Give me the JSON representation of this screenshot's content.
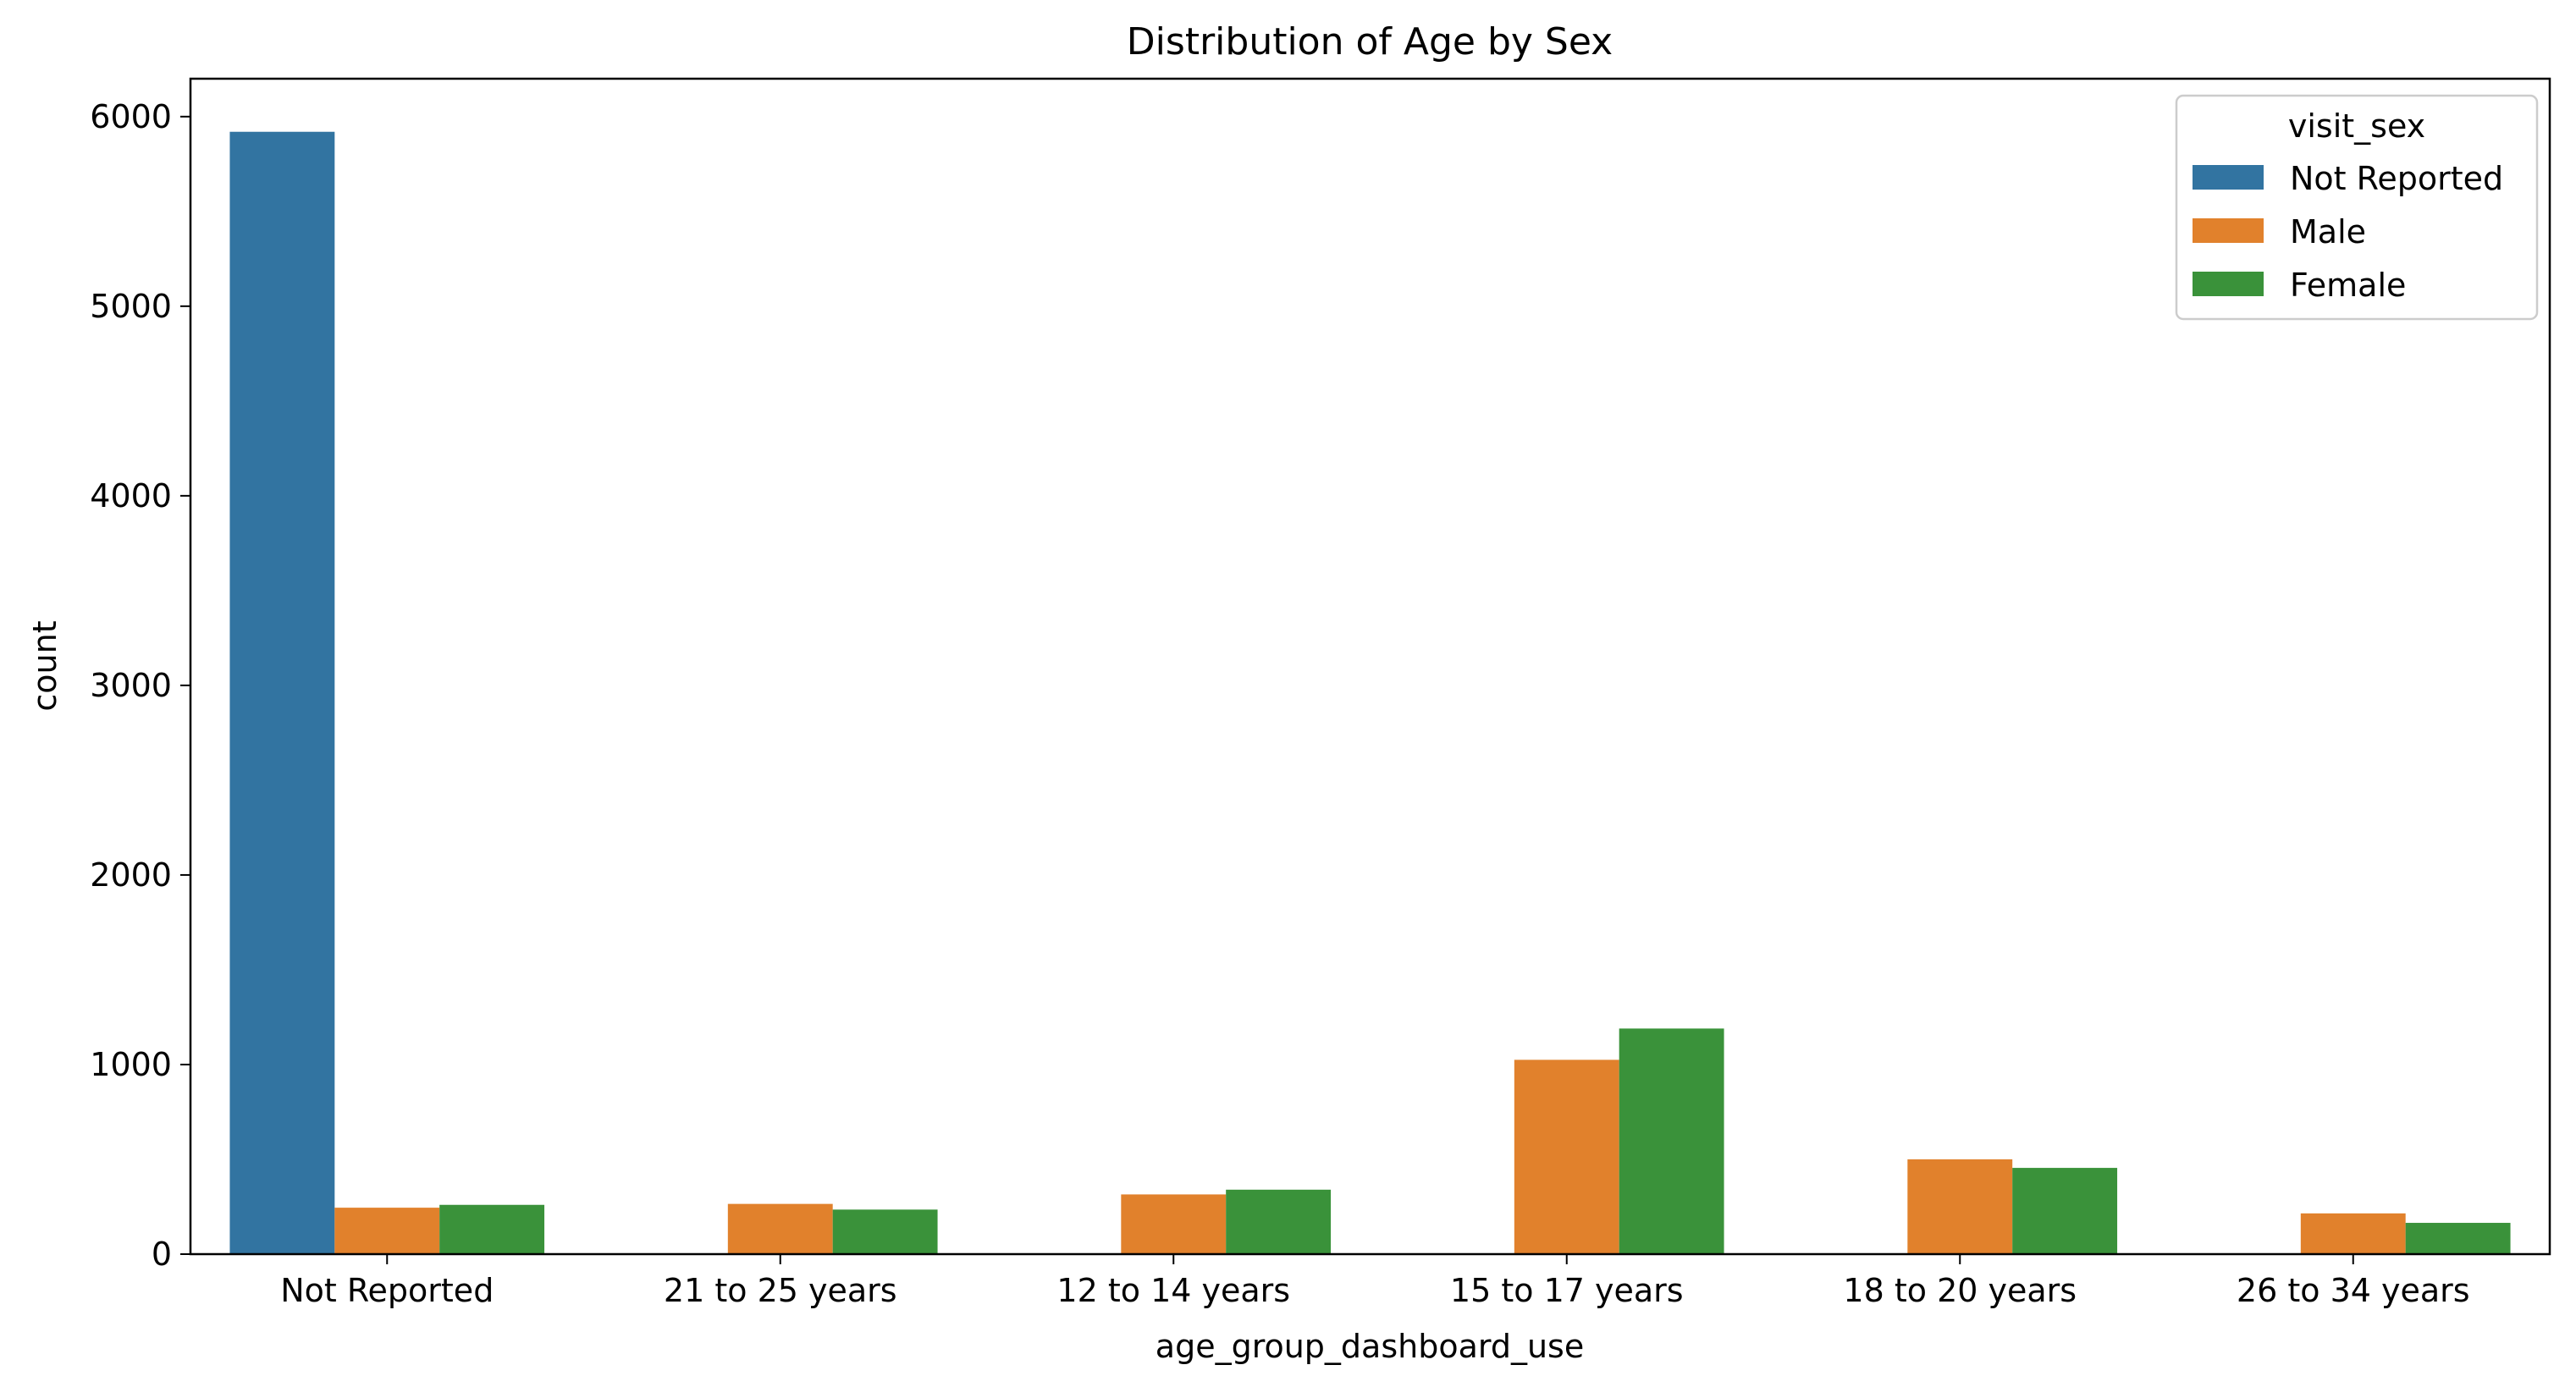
{
  "chart_data": {
    "type": "bar",
    "title": "Distribution of Age by Sex",
    "xlabel": "age_group_dashboard_use",
    "ylabel": "count",
    "ylim": [
      0,
      6200
    ],
    "yticks": [
      0,
      1000,
      2000,
      3000,
      4000,
      5000,
      6000
    ],
    "categories": [
      "Not Reported",
      "21 to 25 years",
      "12 to 14 years",
      "15 to 17 years",
      "18 to 20 years",
      "26 to 34 years"
    ],
    "series": [
      {
        "name": "Not Reported",
        "color": "#3274a1",
        "values": [
          5920,
          0,
          0,
          0,
          0,
          0
        ]
      },
      {
        "name": "Male",
        "color": "#e1812c",
        "values": [
          245,
          265,
          315,
          1025,
          500,
          215
        ]
      },
      {
        "name": "Female",
        "color": "#3a923a",
        "values": [
          260,
          235,
          340,
          1190,
          455,
          165
        ]
      }
    ],
    "legend": {
      "title": "visit_sex",
      "position": "top-right"
    },
    "grid": false
  }
}
